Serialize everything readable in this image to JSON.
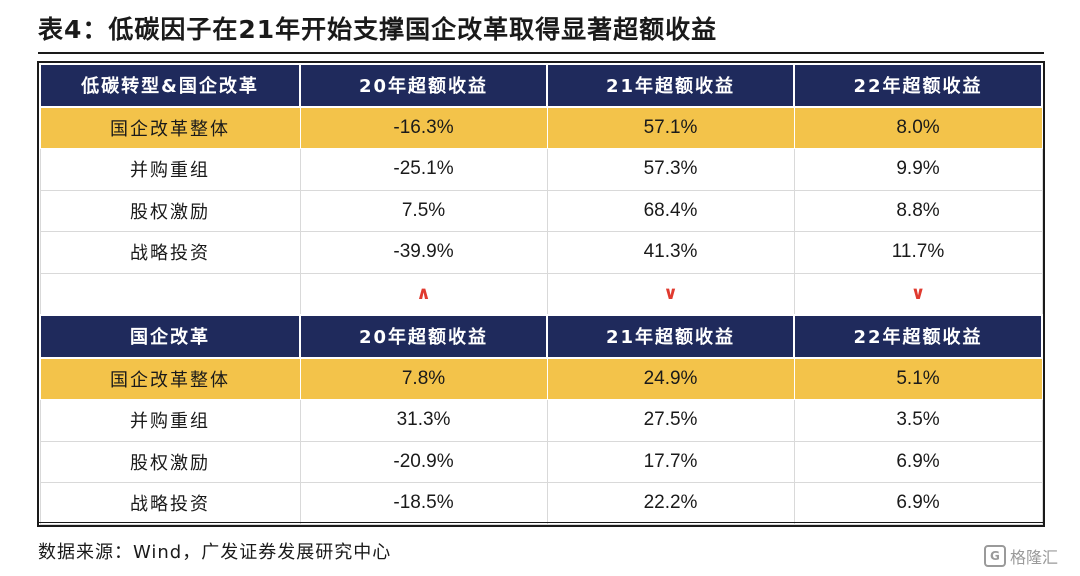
{
  "title": "表4：低碳因子在21年开始支撑国企改革取得显著超额收益",
  "table": {
    "section1": {
      "header": [
        "低碳转型&国企改革",
        "20年超额收益",
        "21年超额收益",
        "22年超额收益"
      ],
      "rows": [
        [
          "国企改革整体",
          "-16.3%",
          "57.1%",
          "8.0%"
        ],
        [
          "并购重组",
          "-25.1%",
          "57.3%",
          "9.9%"
        ],
        [
          "股权激励",
          "7.5%",
          "68.4%",
          "8.8%"
        ],
        [
          "战略投资",
          "-39.9%",
          "41.3%",
          "11.7%"
        ]
      ]
    },
    "comparison": [
      "",
      "∧",
      "∨",
      "∨"
    ],
    "section2": {
      "header": [
        "国企改革",
        "20年超额收益",
        "21年超额收益",
        "22年超额收益"
      ],
      "rows": [
        [
          "国企改革整体",
          "7.8%",
          "24.9%",
          "5.1%"
        ],
        [
          "并购重组",
          "31.3%",
          "27.5%",
          "3.5%"
        ],
        [
          "股权激励",
          "-20.9%",
          "17.7%",
          "6.9%"
        ],
        [
          "战略投资",
          "-18.5%",
          "22.2%",
          "6.9%"
        ]
      ]
    }
  },
  "source": "数据来源：Wind，广发证券发展研究中心",
  "watermark": {
    "icon": "G",
    "text": "格隆汇"
  },
  "colors": {
    "header_bg": "#1f2a5c",
    "highlight_bg": "#f3c34a",
    "comparison_mark": "#e03a2f"
  }
}
